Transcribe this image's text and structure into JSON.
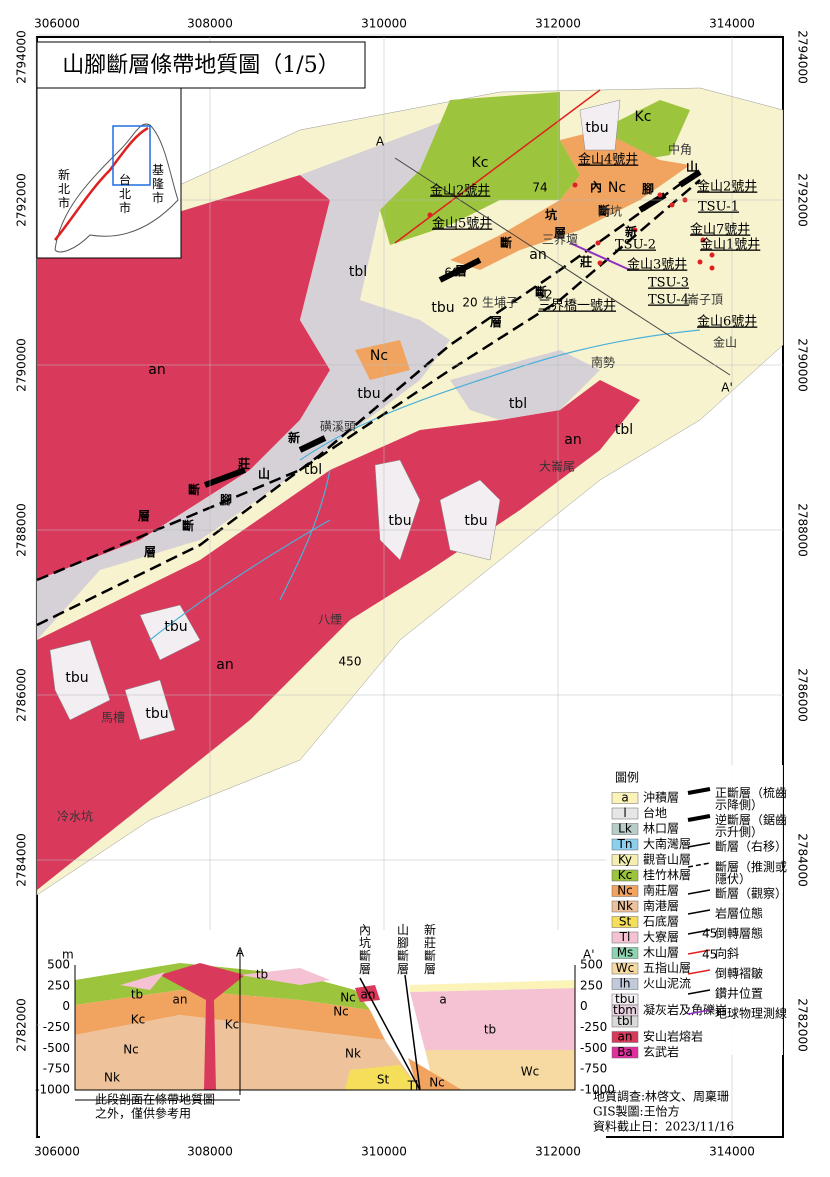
{
  "title": "山腳斷層條帶地質圖（1/5）",
  "axes": {
    "x_ticks": [
      "306000",
      "308000",
      "310000",
      "312000",
      "314000"
    ],
    "y_ticks": [
      "2794000",
      "2792000",
      "2790000",
      "2788000",
      "2786000",
      "2784000",
      "2782000"
    ]
  },
  "inset": {
    "labels": [
      "新北市",
      "台北市",
      "基隆市"
    ]
  },
  "map": {
    "unit_labels": [
      "Kc",
      "tbu",
      "Kc",
      "Nc",
      "an",
      "tbl",
      "tbu",
      "Nc",
      "tbu",
      "tbl",
      "an",
      "tbl",
      "an",
      "tbl",
      "tbu",
      "tbu",
      "tbu",
      "an",
      "tbu",
      "tbu"
    ],
    "fault_labels": [
      "山腳斷層",
      "內坑斷層",
      "新莊斷層",
      "新莊斷層",
      "山腳斷層"
    ],
    "wells": [
      "金山4號井",
      "金山2號井",
      "金山5號井",
      "金山2號井",
      "TSU-1",
      "金山7號井",
      "金山1號井",
      "TSU-2",
      "金山3號井",
      "TSU-3",
      "TSU-4",
      "三界橋一號井",
      "金山6號井"
    ],
    "places": [
      "中角",
      "內坑",
      "三界壇",
      "崙子頂",
      "金山",
      "南勢",
      "磺溪頭",
      "大崙尾",
      "八煙",
      "馬槽",
      "冷水坑",
      "生埔子"
    ],
    "annotations": [
      "74",
      "60",
      "32",
      "20",
      "450"
    ],
    "section_ends": [
      "A",
      "A'"
    ]
  },
  "legend": {
    "title": "圖例",
    "units": [
      {
        "codes": [
          {
            "code": "a",
            "color": "#fbf3b8"
          }
        ],
        "name": "沖積層"
      },
      {
        "codes": [
          {
            "code": "l",
            "color": "#e6e6e6"
          }
        ],
        "name": "台地"
      },
      {
        "codes": [
          {
            "code": "Lk",
            "color": "#b8ccc8"
          }
        ],
        "name": "林口層"
      },
      {
        "codes": [
          {
            "code": "Tn",
            "color": "#8cd0f0"
          }
        ],
        "name": "大南灣層"
      },
      {
        "codes": [
          {
            "code": "Ky",
            "color": "#f4efb0"
          }
        ],
        "name": "觀音山層"
      },
      {
        "codes": [
          {
            "code": "Kc",
            "color": "#9cc43c"
          }
        ],
        "name": "桂竹林層"
      },
      {
        "codes": [
          {
            "code": "Nc",
            "color": "#f0a460"
          }
        ],
        "name": "南莊層"
      },
      {
        "codes": [
          {
            "code": "Nk",
            "color": "#eec29a"
          }
        ],
        "name": "南港層"
      },
      {
        "codes": [
          {
            "code": "St",
            "color": "#f5df5a"
          }
        ],
        "name": "石底層"
      },
      {
        "codes": [
          {
            "code": "Tl",
            "color": "#f5c2d4"
          }
        ],
        "name": "大寮層"
      },
      {
        "codes": [
          {
            "code": "Ms",
            "color": "#8ed4b0"
          }
        ],
        "name": "木山層"
      },
      {
        "codes": [
          {
            "code": "Wc",
            "color": "#f7d9a2"
          }
        ],
        "name": "五指山層"
      },
      {
        "codes": [
          {
            "code": "lh",
            "color": "#c0cad8"
          }
        ],
        "name": "火山泥流"
      },
      {
        "codes": [
          {
            "code": "tbu",
            "color": "#f2eef2"
          },
          {
            "code": "tbm",
            "color": "#e8d0e0"
          },
          {
            "code": "tbl",
            "color": "#d9d9d9"
          }
        ],
        "name": "凝灰岩及角礫岩"
      },
      {
        "codes": [
          {
            "code": "an",
            "color": "#d93a5c"
          }
        ],
        "name": "安山岩熔岩"
      },
      {
        "codes": [
          {
            "code": "Ba",
            "color": "#e22fa0"
          }
        ],
        "name": "玄武岩"
      }
    ],
    "symbols": [
      "正斷層（梳齒示降側）",
      "逆斷層（鋸齒示升側）",
      "斷層（右移）",
      "斷層（推測或隱伏）",
      "斷層（觀察）",
      "岩層位態",
      "倒轉層態",
      "向斜",
      "倒轉褶皺",
      "鑽井位置",
      "地球物理測線"
    ],
    "symbol_numbers": [
      "45",
      "45"
    ]
  },
  "section": {
    "unit": "m",
    "left_ticks": [
      "500",
      "250",
      "0",
      "-250",
      "-500",
      "-750",
      "-1000"
    ],
    "right_ticks": [
      "500",
      "250",
      "0",
      "-250",
      "-500",
      "-750",
      "-1000"
    ],
    "ends": [
      "A",
      "A'"
    ],
    "faults": [
      "內坑斷層",
      "山腳斷層",
      "新莊斷層"
    ],
    "unit_labels": [
      "tb",
      "an",
      "tb",
      "Kc",
      "Kc",
      "Nc",
      "Nc",
      "Nk",
      "Nk",
      "St",
      "Tl",
      "Nc",
      "Wc",
      "a",
      "tb",
      "Nc",
      "an"
    ],
    "note": [
      "此段剖面在條帶地質圖",
      "之外，僅供參考用"
    ]
  },
  "credits": [
    "地質調查:林啓文、周稟珊",
    "GIS製圖:王怡方",
    "資料截止日：2023/11/16"
  ]
}
